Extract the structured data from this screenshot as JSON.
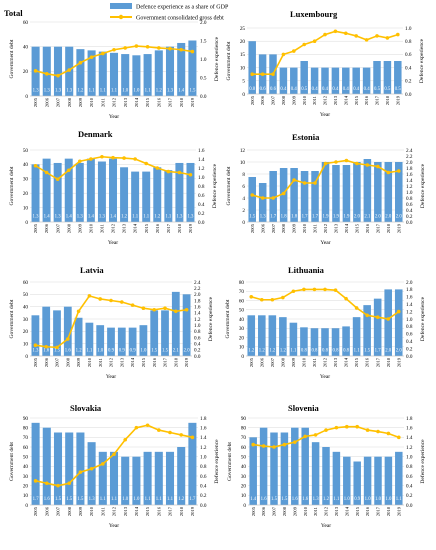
{
  "legend": {
    "bar_label": "Defence experience as a share of GDP",
    "line_label": "Government consolidated gross debt",
    "bar_color": "#5b9bd5",
    "line_color": "#ffc000"
  },
  "chart_data": [
    {
      "type": "bar",
      "title": "Total",
      "categories": [
        "2005",
        "2006",
        "2007",
        "2008",
        "2009",
        "2010",
        "2011",
        "2012",
        "2013",
        "2014",
        "2015",
        "2016",
        "2017",
        "2018",
        "2019"
      ],
      "xlabel": "Year",
      "ylabel_left": "Government debt",
      "ylabel_right": "Defence experience",
      "ylim_left": [
        0,
        60
      ],
      "ylim_right": [
        0,
        2.0
      ],
      "left_ticks": [
        0,
        20,
        40,
        60
      ],
      "right_ticks": [
        0,
        0.5,
        1.0,
        1.5,
        2.0
      ],
      "bar_series": {
        "name": "Defence experience as a share of GDP",
        "axis": "left",
        "values": [
          40,
          40,
          40,
          40,
          38,
          37,
          36,
          35,
          34,
          33,
          34,
          37,
          40,
          43,
          45
        ]
      },
      "bar_data_labels": [
        "1.3",
        "1.3",
        "1.3",
        "1.3",
        "1.2",
        "1.1",
        "1.1",
        "1.1",
        "1.0",
        "1.0",
        "1.1",
        "1.2",
        "1.3",
        "1.4",
        "1.5"
      ],
      "line_series": {
        "name": "Government consolidated gross debt",
        "axis": "right",
        "values": [
          0.68,
          0.6,
          0.55,
          0.7,
          0.9,
          1.05,
          1.15,
          1.25,
          1.3,
          1.35,
          1.33,
          1.3,
          1.28,
          1.25,
          1.2
        ]
      }
    },
    {
      "type": "bar",
      "title": "Luxembourg",
      "categories": [
        "2005",
        "2006",
        "2007",
        "2008",
        "2009",
        "2010",
        "2011",
        "2012",
        "2013",
        "2014",
        "2015",
        "2016",
        "2017",
        "2018",
        "2019"
      ],
      "xlabel": "Year",
      "ylabel_left": "Government debt",
      "ylabel_right": "Defence experience",
      "ylim_left": [
        0,
        25
      ],
      "ylim_right": [
        0,
        1.0
      ],
      "left_ticks": [
        0,
        5,
        10,
        15,
        20,
        25
      ],
      "right_ticks": [
        0,
        0.2,
        0.4,
        0.6,
        0.8,
        1.0
      ],
      "bar_series": {
        "name": "Defence experience as a share of GDP",
        "axis": "left",
        "values": [
          20,
          15,
          15,
          10,
          10,
          12.5,
          10,
          10,
          10,
          10,
          10,
          10,
          12.5,
          12.5,
          12.5
        ]
      },
      "bar_data_labels": [
        "0.8",
        "0.6",
        "0.6",
        "0.4",
        "0.4",
        "0.5",
        "0.4",
        "0.4",
        "0.4",
        "0.4",
        "0.4",
        "0.4",
        "0.5",
        "0.5",
        "0.5"
      ],
      "line_series": {
        "name": "Government consolidated gross debt",
        "axis": "right",
        "values": [
          0.3,
          0.3,
          0.3,
          0.6,
          0.65,
          0.75,
          0.8,
          0.9,
          0.95,
          0.92,
          0.88,
          0.82,
          0.88,
          0.85,
          0.9
        ]
      }
    },
    {
      "type": "bar",
      "title": "Denmark",
      "categories": [
        "2005",
        "2006",
        "2007",
        "2008",
        "2009",
        "2010",
        "2011",
        "2012",
        "2013",
        "2014",
        "2015",
        "2016",
        "2017",
        "2018",
        "2019"
      ],
      "xlabel": "Year",
      "ylabel_left": "Government debt",
      "ylabel_right": "Defence experience",
      "ylim_left": [
        0,
        50
      ],
      "ylim_right": [
        0,
        1.6
      ],
      "left_ticks": [
        0,
        10,
        20,
        30,
        40,
        50
      ],
      "right_ticks": [
        0,
        0.2,
        0.4,
        0.6,
        0.8,
        1.0,
        1.2,
        1.4,
        1.6
      ],
      "bar_series": {
        "name": "Defence experience as a share of GDP",
        "axis": "left",
        "values": [
          40,
          44,
          41,
          44,
          41,
          44,
          42,
          44,
          38,
          35,
          35,
          38,
          36,
          41,
          41
        ]
      },
      "bar_data_labels": [
        "1.3",
        "1.4",
        "1.3",
        "1.4",
        "1.3",
        "1.4",
        "1.3",
        "1.4",
        "1.2",
        "1.1",
        "1.1",
        "1.2",
        "1.1",
        "1.3",
        "1.3"
      ],
      "line_series": {
        "name": "Government consolidated gross debt",
        "axis": "right",
        "values": [
          1.25,
          1.1,
          0.95,
          1.15,
          1.35,
          1.4,
          1.45,
          1.43,
          1.42,
          1.4,
          1.3,
          1.2,
          1.12,
          1.1,
          1.05
        ]
      }
    },
    {
      "type": "bar",
      "title": "Estonia",
      "categories": [
        "2005",
        "2006",
        "2007",
        "2008",
        "2009",
        "2010",
        "2011",
        "2012",
        "2013",
        "2014",
        "2015",
        "2016",
        "2017",
        "2018",
        "2019"
      ],
      "xlabel": "Year",
      "ylabel_left": "Government debt",
      "ylabel_right": "Defence experience",
      "ylim_left": [
        0,
        12
      ],
      "ylim_right": [
        0,
        2.4
      ],
      "left_ticks": [
        0,
        2,
        4,
        6,
        8,
        10,
        12
      ],
      "right_ticks": [
        0,
        0.2,
        0.4,
        0.6,
        0.8,
        1.0,
        1.2,
        1.4,
        1.6,
        1.8,
        2.0,
        2.2,
        2.4
      ],
      "bar_series": {
        "name": "Defence experience as a share of GDP",
        "axis": "left",
        "values": [
          7.5,
          6.5,
          8.5,
          9,
          9,
          8.5,
          8.5,
          10,
          9.5,
          9.5,
          10,
          10.5,
          10,
          10,
          10
        ]
      },
      "bar_data_labels": [
        "1.5",
        "1.3",
        "1.7",
        "1.8",
        "1.8",
        "1.7",
        "1.7",
        "1.9",
        "1.9",
        "1.9",
        "2.0",
        "2.1",
        "2.0",
        "2.0",
        "2.0"
      ],
      "line_series": {
        "name": "Government consolidated gross debt",
        "axis": "right",
        "values": [
          0.9,
          0.8,
          0.8,
          0.95,
          1.4,
          1.3,
          1.3,
          1.95,
          2.0,
          2.05,
          1.95,
          1.9,
          1.85,
          1.65,
          1.7
        ]
      }
    },
    {
      "type": "bar",
      "title": "Latvia",
      "categories": [
        "2005",
        "2006",
        "2007",
        "2008",
        "2009",
        "2010",
        "2011",
        "2012",
        "2013",
        "2014",
        "2015",
        "2016",
        "2017",
        "2018",
        "2019"
      ],
      "xlabel": "Year",
      "ylabel_left": "Government debt",
      "ylabel_right": "Defence experience",
      "ylim_left": [
        0,
        60
      ],
      "ylim_right": [
        0,
        2.4
      ],
      "left_ticks": [
        0,
        10,
        20,
        30,
        40,
        50,
        60
      ],
      "right_ticks": [
        0,
        0.2,
        0.4,
        0.6,
        0.8,
        1.0,
        1.2,
        1.4,
        1.6,
        1.8,
        2.0,
        2.2,
        2.4
      ],
      "bar_series": {
        "name": "Defence experience as a share of GDP",
        "axis": "left",
        "values": [
          33,
          40,
          37,
          40,
          31,
          27,
          25,
          23,
          23,
          23,
          25,
          37,
          37,
          52,
          50
        ]
      },
      "bar_data_labels": [
        "1.3",
        "1.6",
        "1.5",
        "1.6",
        "1.2",
        "1.1",
        "1.0",
        "0.9",
        "0.9",
        "0.9",
        "1.0",
        "1.5",
        "1.5",
        "2.1",
        "2.0"
      ],
      "line_series": {
        "name": "Government consolidated gross debt",
        "axis": "right",
        "values": [
          0.35,
          0.3,
          0.28,
          0.55,
          1.45,
          1.95,
          1.85,
          1.8,
          1.75,
          1.65,
          1.55,
          1.5,
          1.55,
          1.45,
          1.5
        ]
      }
    },
    {
      "type": "bar",
      "title": "Lithuania",
      "categories": [
        "2005",
        "2006",
        "2007",
        "2008",
        "2009",
        "2010",
        "2011",
        "2012",
        "2013",
        "2014",
        "2015",
        "2016",
        "2017",
        "2018",
        "2019"
      ],
      "xlabel": "Year",
      "ylabel_left": "Government debt",
      "ylabel_right": "Defence experience",
      "ylim_left": [
        0,
        80
      ],
      "ylim_right": [
        0,
        2.0
      ],
      "left_ticks": [
        0,
        10,
        20,
        30,
        40,
        50,
        60,
        70,
        80
      ],
      "right_ticks": [
        0,
        0.2,
        0.4,
        0.6,
        0.8,
        1.0,
        1.2,
        1.4,
        1.6,
        1.8,
        2.0
      ],
      "bar_series": {
        "name": "Defence experience as a share of GDP",
        "axis": "left",
        "values": [
          44,
          44,
          44,
          42,
          36,
          31,
          30,
          30,
          30,
          32,
          42,
          55,
          62,
          72,
          72
        ]
      },
      "bar_data_labels": [
        "1.2",
        "1.2",
        "1.2",
        "1.2",
        "1.1",
        "0.8",
        "0.8",
        "0.8",
        "0.8",
        "0.8",
        "1.1",
        "1.5",
        "1.7",
        "2.0",
        "2.0"
      ],
      "line_series": {
        "name": "Government consolidated gross debt",
        "axis": "right",
        "values": [
          1.6,
          1.52,
          1.52,
          1.58,
          1.75,
          1.8,
          1.8,
          1.8,
          1.78,
          1.55,
          1.3,
          1.1,
          1.05,
          1.0,
          1.2
        ]
      }
    },
    {
      "type": "bar",
      "title": "Slovakia",
      "categories": [
        "2005",
        "2006",
        "2007",
        "2008",
        "2009",
        "2010",
        "2011",
        "2012",
        "2013",
        "2014",
        "2015",
        "2016",
        "2017",
        "2018",
        "2019"
      ],
      "xlabel": "Year",
      "ylabel_left": "Government debt",
      "ylabel_right": "Defence experience",
      "ylim_left": [
        0,
        90
      ],
      "ylim_right": [
        0,
        1.8
      ],
      "left_ticks": [
        0,
        10,
        20,
        30,
        40,
        50,
        60,
        70,
        80,
        90
      ],
      "right_ticks": [
        0,
        0.2,
        0.4,
        0.6,
        0.8,
        1.0,
        1.2,
        1.4,
        1.6,
        1.8
      ],
      "bar_series": {
        "name": "Defence experience as a share of GDP",
        "axis": "left",
        "values": [
          85,
          80,
          75,
          75,
          75,
          65,
          55,
          55,
          50,
          50,
          55,
          55,
          55,
          60,
          85
        ]
      },
      "bar_data_labels": [
        "1.7",
        "1.6",
        "1.5",
        "1.5",
        "1.5",
        "1.3",
        "1.1",
        "1.1",
        "1.0",
        "1.0",
        "1.1",
        "1.1",
        "1.1",
        "1.2",
        "1.7"
      ],
      "line_series": {
        "name": "Government consolidated gross debt",
        "axis": "right",
        "values": [
          0.5,
          0.45,
          0.4,
          0.45,
          0.68,
          0.75,
          0.85,
          1.05,
          1.35,
          1.6,
          1.65,
          1.55,
          1.5,
          1.45,
          1.4
        ]
      }
    },
    {
      "type": "bar",
      "title": "Slovenia",
      "categories": [
        "2005",
        "2006",
        "2007",
        "2008",
        "2009",
        "2010",
        "2011",
        "2012",
        "2013",
        "2014",
        "2015",
        "2016",
        "2017",
        "2018",
        "2019"
      ],
      "xlabel": "Year",
      "ylabel_left": "Government debt",
      "ylabel_right": "Defence experience",
      "ylim_left": [
        0,
        90
      ],
      "ylim_right": [
        0,
        1.8
      ],
      "left_ticks": [
        0,
        10,
        20,
        30,
        40,
        50,
        60,
        70,
        80,
        90
      ],
      "right_ticks": [
        0,
        0.2,
        0.4,
        0.6,
        0.8,
        1.0,
        1.2,
        1.4,
        1.6,
        1.8
      ],
      "bar_series": {
        "name": "Defence experience as a share of GDP",
        "axis": "left",
        "values": [
          70,
          80,
          75,
          75,
          80,
          80,
          65,
          60,
          55,
          50,
          45,
          50,
          50,
          50,
          55
        ]
      },
      "bar_data_labels": [
        "1.4",
        "1.6",
        "1.5",
        "1.5",
        "1.6",
        "1.6",
        "1.3",
        "1.2",
        "1.1",
        "1.0",
        "0.9",
        "1.0",
        "1.0",
        "1.0",
        "1.1"
      ],
      "line_series": {
        "name": "Government consolidated gross debt",
        "axis": "right",
        "values": [
          1.25,
          1.22,
          1.2,
          1.25,
          1.3,
          1.42,
          1.45,
          1.55,
          1.6,
          1.62,
          1.62,
          1.55,
          1.52,
          1.48,
          1.4
        ]
      }
    }
  ]
}
